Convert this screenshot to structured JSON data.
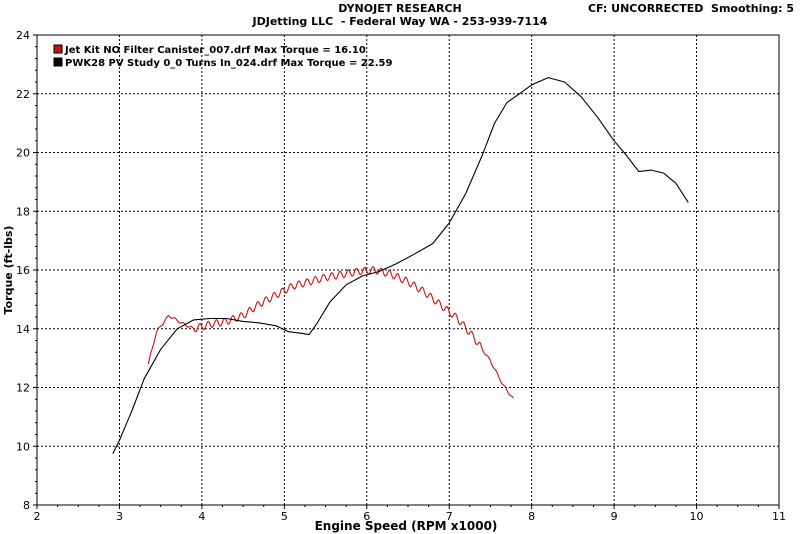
{
  "header": {
    "title": "DYNOJET RESEARCH",
    "subtitle": "JDJetting LLC  - Federal Way WA - 253-939-7114",
    "settings": "CF: UNCORRECTED  Smoothing: 5"
  },
  "colors": {
    "series_red": "#cc1111",
    "series_black": "#000000",
    "grid": "#000000"
  },
  "chart_data": {
    "type": "line",
    "xlabel": "Engine Speed  (RPM x1000)",
    "ylabel": "Torque (ft-lbs)",
    "xlim": [
      2,
      11
    ],
    "ylim": [
      8,
      24
    ],
    "x_ticks": [
      "2",
      "3",
      "4",
      "5",
      "6",
      "7",
      "8",
      "9",
      "10",
      "11"
    ],
    "y_ticks": [
      "8",
      "10",
      "12",
      "14",
      "16",
      "18",
      "20",
      "22",
      "24"
    ],
    "grid": true,
    "legend_position": "top-left",
    "series": [
      {
        "name": "Jet Kit NO Filter Canister_007.drf Max Torque = 16.10",
        "color": "#cc1111",
        "ripple": true,
        "points": [
          [
            3.35,
            12.8
          ],
          [
            3.45,
            13.9
          ],
          [
            3.6,
            14.45
          ],
          [
            3.75,
            14.2
          ],
          [
            3.9,
            14.0
          ],
          [
            4.1,
            14.15
          ],
          [
            4.3,
            14.25
          ],
          [
            4.5,
            14.45
          ],
          [
            4.7,
            14.85
          ],
          [
            4.9,
            15.15
          ],
          [
            5.1,
            15.45
          ],
          [
            5.3,
            15.6
          ],
          [
            5.5,
            15.75
          ],
          [
            5.7,
            15.85
          ],
          [
            5.9,
            15.95
          ],
          [
            6.1,
            16.0
          ],
          [
            6.3,
            15.85
          ],
          [
            6.5,
            15.6
          ],
          [
            6.7,
            15.25
          ],
          [
            6.9,
            14.8
          ],
          [
            7.1,
            14.35
          ],
          [
            7.3,
            13.7
          ],
          [
            7.5,
            12.9
          ],
          [
            7.65,
            12.1
          ],
          [
            7.78,
            11.6
          ]
        ]
      },
      {
        "name": "PWK28 PV Study 0_0 Turns In_024.drf Max Torque = 22.59",
        "color": "#000000",
        "ripple": false,
        "points": [
          [
            2.92,
            9.75
          ],
          [
            3.0,
            10.2
          ],
          [
            3.15,
            11.2
          ],
          [
            3.3,
            12.3
          ],
          [
            3.5,
            13.3
          ],
          [
            3.7,
            14.0
          ],
          [
            3.9,
            14.3
          ],
          [
            4.1,
            14.35
          ],
          [
            4.3,
            14.35
          ],
          [
            4.5,
            14.25
          ],
          [
            4.7,
            14.2
          ],
          [
            4.9,
            14.1
          ],
          [
            5.05,
            13.9
          ],
          [
            5.2,
            13.85
          ],
          [
            5.3,
            13.8
          ],
          [
            5.4,
            14.2
          ],
          [
            5.55,
            14.9
          ],
          [
            5.75,
            15.5
          ],
          [
            5.95,
            15.8
          ],
          [
            6.15,
            15.95
          ],
          [
            6.35,
            16.2
          ],
          [
            6.55,
            16.5
          ],
          [
            6.8,
            16.9
          ],
          [
            7.0,
            17.6
          ],
          [
            7.2,
            18.6
          ],
          [
            7.4,
            19.9
          ],
          [
            7.55,
            21.0
          ],
          [
            7.7,
            21.7
          ],
          [
            7.85,
            22.0
          ],
          [
            8.0,
            22.3
          ],
          [
            8.2,
            22.55
          ],
          [
            8.4,
            22.4
          ],
          [
            8.6,
            21.9
          ],
          [
            8.8,
            21.2
          ],
          [
            9.0,
            20.4
          ],
          [
            9.15,
            19.9
          ],
          [
            9.3,
            19.35
          ],
          [
            9.45,
            19.4
          ],
          [
            9.6,
            19.3
          ],
          [
            9.75,
            18.95
          ],
          [
            9.9,
            18.3
          ]
        ]
      }
    ]
  }
}
